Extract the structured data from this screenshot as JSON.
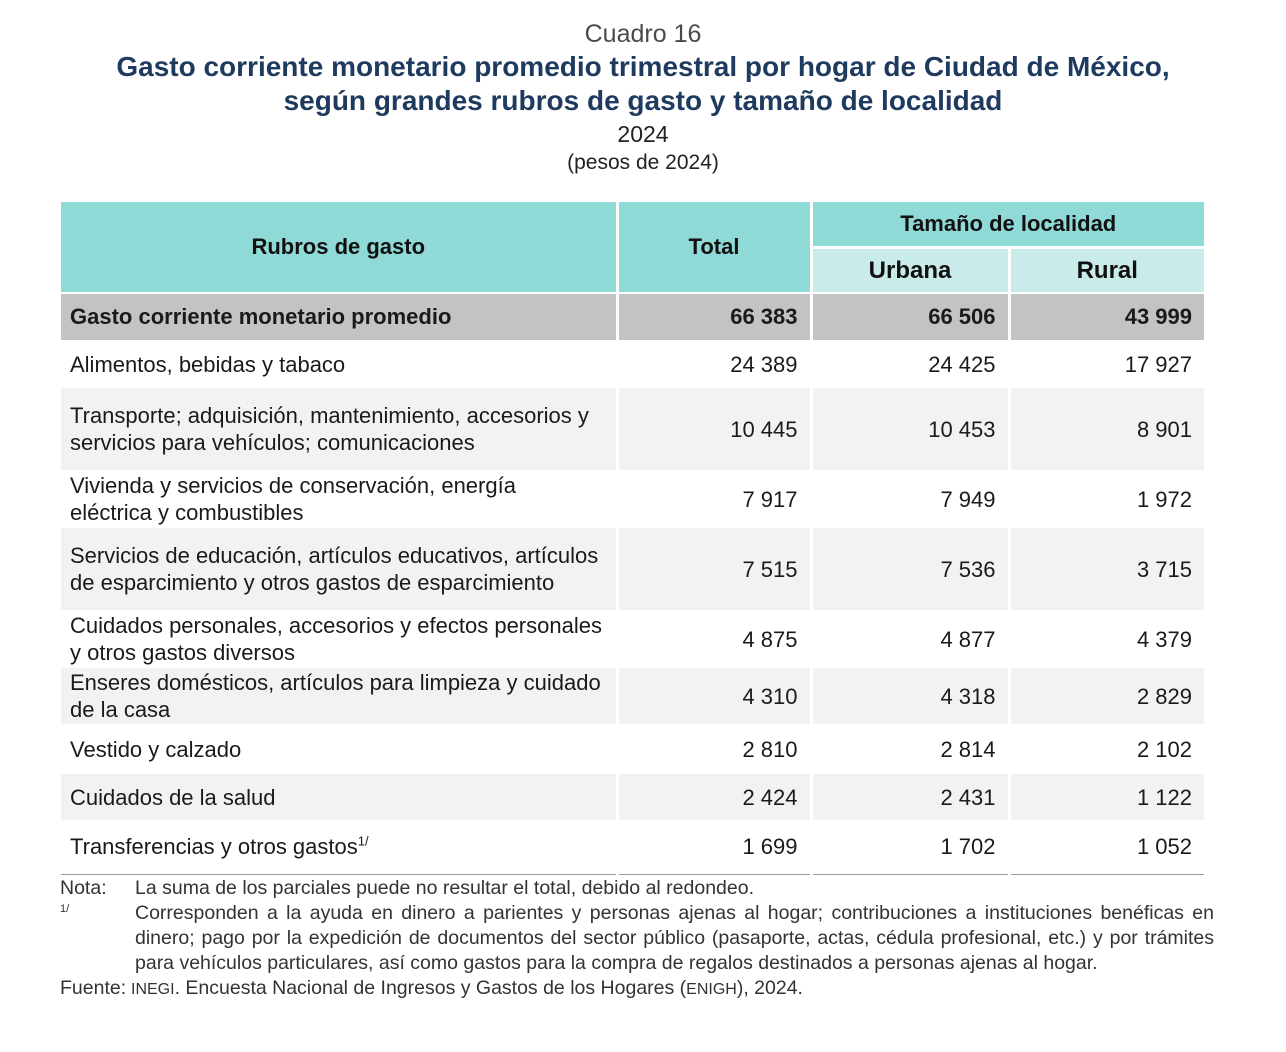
{
  "header": {
    "cuadro": "Cuadro 16",
    "title_line1": "Gasto corriente monetario promedio trimestral por hogar de Ciudad de México,",
    "title_line2": "según grandes rubros de gasto y tamaño de localidad",
    "year": "2024",
    "units": "(pesos de 2024)"
  },
  "table": {
    "col_rubros": "Rubros de gasto",
    "col_total": "Total",
    "col_group": "Tamaño de localidad",
    "col_urbana": "Urbana",
    "col_rural": "Rural",
    "total_row": {
      "label": "Gasto corriente monetario promedio",
      "total": "66 383",
      "urbana": "66 506",
      "rural": "43 999"
    },
    "rows": [
      {
        "label": "Alimentos, bebidas y tabaco",
        "total": "24 389",
        "urbana": "24 425",
        "rural": "17 927"
      },
      {
        "label": "Transporte; adquisición, mantenimiento, accesorios y servicios para vehículos; comunicaciones",
        "total": "10 445",
        "urbana": "10 453",
        "rural": "8 901"
      },
      {
        "label": "Vivienda y servicios de conservación, energía eléctrica y combustibles",
        "total": "7 917",
        "urbana": "7 949",
        "rural": "1 972"
      },
      {
        "label": "Servicios de educación, artículos educativos, artículos de esparcimiento y otros gastos de esparcimiento",
        "total": "7 515",
        "urbana": "7 536",
        "rural": "3 715"
      },
      {
        "label": "Cuidados personales, accesorios y efectos personales y otros gastos diversos",
        "total": "4 875",
        "urbana": "4 877",
        "rural": "4 379"
      },
      {
        "label": "Enseres domésticos, artículos para limpieza y cuidado de la casa",
        "total": "4 310",
        "urbana": "4 318",
        "rural": "2 829"
      },
      {
        "label": "Vestido y calzado",
        "total": "2 810",
        "urbana": "2 814",
        "rural": "2 102"
      },
      {
        "label": "Cuidados de la salud",
        "total": "2 424",
        "urbana": "2 431",
        "rural": "1 122"
      },
      {
        "label": "Transferencias y otros gastos",
        "footnote_mark": "1/",
        "total": "1 699",
        "urbana": "1 702",
        "rural": "1 052"
      }
    ]
  },
  "notes": {
    "nota_key": "Nota:",
    "nota_text": "La suma de los parciales puede no resultar el total, debido al redondeo.",
    "footnote_key": "1/",
    "footnote_text": "Corresponden a la ayuda en dinero a parientes y personas ajenas al hogar; contribuciones a instituciones benéficas en dinero; pago por la expedición de documentos del sector público (pasaporte, actas, cédula profesional, etc.) y por trámites para vehículos particulares, así como gastos para la compra de regalos destinados a personas ajenas al hogar.",
    "source_key": "Fuente:",
    "source_org": "INEGI",
    "source_text": ". Encuesta Nacional de Ingresos y Gastos de los Hogares (",
    "source_abbr": "ENIGH",
    "source_tail": "), 2024."
  }
}
